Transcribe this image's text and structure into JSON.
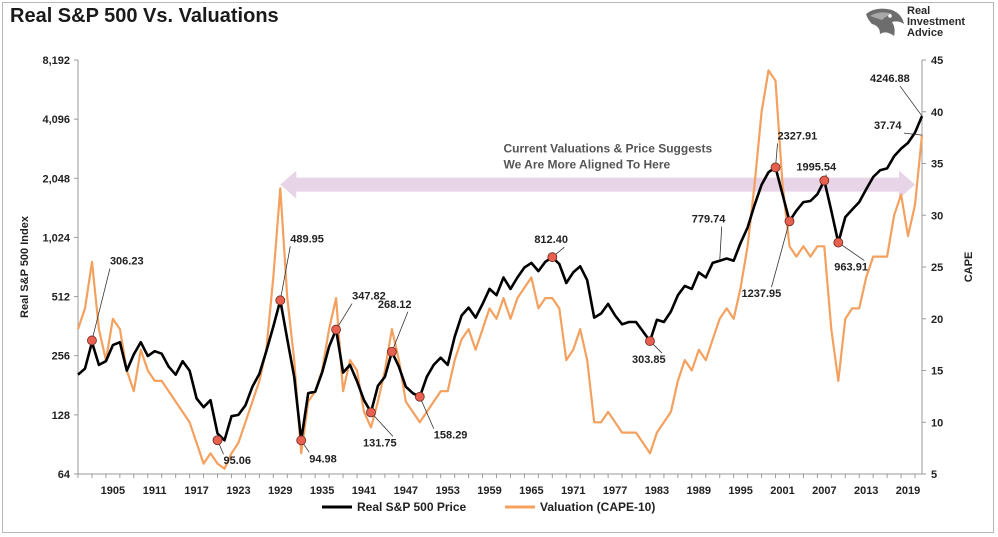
{
  "title": "Real S&P 500 Vs. Valuations",
  "logo": {
    "lines": [
      "Real",
      "Investment",
      "Advice"
    ],
    "icon": "eagle-head-icon"
  },
  "chart_data": {
    "type": "line",
    "title": "Real S&P 500 Vs. Valuations",
    "xlabel": "",
    "x_ticks": [
      "1905",
      "1911",
      "1917",
      "1923",
      "1929",
      "1935",
      "1941",
      "1947",
      "1953",
      "1959",
      "1965",
      "1971",
      "1977",
      "1983",
      "1989",
      "1995",
      "2001",
      "2007",
      "2013",
      "2019"
    ],
    "xlim": [
      1900,
      2021
    ],
    "left_axis": {
      "label": "Real S&P 500 Index",
      "scale": "log2",
      "ticks": [
        "64",
        "128",
        "256",
        "512",
        "1,024",
        "2,048",
        "4,096",
        "8,192"
      ],
      "ylim": [
        64,
        8192
      ]
    },
    "right_axis": {
      "label": "CAPE",
      "ticks": [
        "5",
        "10",
        "15",
        "20",
        "25",
        "30",
        "35",
        "40",
        "45"
      ],
      "ylim": [
        5,
        45
      ]
    },
    "colors": {
      "price": "#000000",
      "cape": "#f4a05f",
      "arrow": "#e3cde3",
      "marker": "#e8604f"
    },
    "series": [
      {
        "name": "Real S&P 500 Price",
        "axis": "left",
        "points": [
          [
            1900,
            205
          ],
          [
            1901,
            220
          ],
          [
            1902,
            300
          ],
          [
            1903,
            230
          ],
          [
            1904,
            240
          ],
          [
            1905,
            290
          ],
          [
            1906,
            300
          ],
          [
            1907,
            215
          ],
          [
            1908,
            260
          ],
          [
            1909,
            300
          ],
          [
            1910,
            255
          ],
          [
            1911,
            270
          ],
          [
            1912,
            262
          ],
          [
            1913,
            225
          ],
          [
            1914,
            205
          ],
          [
            1915,
            240
          ],
          [
            1916,
            215
          ],
          [
            1917,
            155
          ],
          [
            1918,
            140
          ],
          [
            1919,
            152
          ],
          [
            1920,
            103
          ],
          [
            1921,
            95
          ],
          [
            1922,
            126
          ],
          [
            1923,
            128
          ],
          [
            1924,
            143
          ],
          [
            1925,
            178
          ],
          [
            1926,
            207
          ],
          [
            1927,
            270
          ],
          [
            1928,
            360
          ],
          [
            1929,
            490
          ],
          [
            1930,
            310
          ],
          [
            1931,
            200
          ],
          [
            1932,
            95
          ],
          [
            1933,
            165
          ],
          [
            1934,
            168
          ],
          [
            1935,
            210
          ],
          [
            1936,
            285
          ],
          [
            1937,
            348
          ],
          [
            1938,
            210
          ],
          [
            1939,
            230
          ],
          [
            1940,
            190
          ],
          [
            1941,
            152
          ],
          [
            1942,
            132
          ],
          [
            1943,
            180
          ],
          [
            1944,
            200
          ],
          [
            1945,
            268
          ],
          [
            1946,
            225
          ],
          [
            1947,
            178
          ],
          [
            1948,
            165
          ],
          [
            1949,
            158
          ],
          [
            1950,
            200
          ],
          [
            1951,
            230
          ],
          [
            1952,
            250
          ],
          [
            1953,
            230
          ],
          [
            1954,
            320
          ],
          [
            1955,
            410
          ],
          [
            1956,
            450
          ],
          [
            1957,
            400
          ],
          [
            1958,
            470
          ],
          [
            1959,
            560
          ],
          [
            1960,
            520
          ],
          [
            1961,
            640
          ],
          [
            1962,
            560
          ],
          [
            1963,
            640
          ],
          [
            1964,
            720
          ],
          [
            1965,
            760
          ],
          [
            1966,
            690
          ],
          [
            1967,
            770
          ],
          [
            1968,
            812
          ],
          [
            1969,
            750
          ],
          [
            1970,
            600
          ],
          [
            1971,
            680
          ],
          [
            1972,
            730
          ],
          [
            1973,
            620
          ],
          [
            1974,
            400
          ],
          [
            1975,
            420
          ],
          [
            1976,
            470
          ],
          [
            1977,
            410
          ],
          [
            1978,
            370
          ],
          [
            1979,
            380
          ],
          [
            1980,
            380
          ],
          [
            1981,
            340
          ],
          [
            1982,
            304
          ],
          [
            1983,
            390
          ],
          [
            1984,
            380
          ],
          [
            1985,
            430
          ],
          [
            1986,
            520
          ],
          [
            1987,
            580
          ],
          [
            1988,
            560
          ],
          [
            1989,
            680
          ],
          [
            1990,
            640
          ],
          [
            1991,
            760
          ],
          [
            1992,
            780
          ],
          [
            1993,
            800
          ],
          [
            1994,
            780
          ],
          [
            1995,
            960
          ],
          [
            1996,
            1150
          ],
          [
            1997,
            1500
          ],
          [
            1998,
            1900
          ],
          [
            1999,
            2200
          ],
          [
            2000,
            2328
          ],
          [
            2001,
            1700
          ],
          [
            2002,
            1238
          ],
          [
            2003,
            1400
          ],
          [
            2004,
            1550
          ],
          [
            2005,
            1570
          ],
          [
            2006,
            1700
          ],
          [
            2007,
            1996
          ],
          [
            2008,
            1400
          ],
          [
            2009,
            964
          ],
          [
            2010,
            1300
          ],
          [
            2011,
            1420
          ],
          [
            2012,
            1550
          ],
          [
            2013,
            1800
          ],
          [
            2014,
            2080
          ],
          [
            2015,
            2250
          ],
          [
            2016,
            2300
          ],
          [
            2017,
            2650
          ],
          [
            2018,
            2900
          ],
          [
            2019,
            3100
          ],
          [
            2020,
            3500
          ],
          [
            2021,
            4247
          ]
        ]
      },
      {
        "name": "Valuation (CAPE-10)",
        "axis": "right",
        "points": [
          [
            1900,
            19
          ],
          [
            1901,
            21
          ],
          [
            1902,
            25.5
          ],
          [
            1903,
            19
          ],
          [
            1904,
            16
          ],
          [
            1905,
            20
          ],
          [
            1906,
            19
          ],
          [
            1907,
            15
          ],
          [
            1908,
            13
          ],
          [
            1909,
            17
          ],
          [
            1910,
            15
          ],
          [
            1911,
            14
          ],
          [
            1912,
            14
          ],
          [
            1913,
            13
          ],
          [
            1914,
            12
          ],
          [
            1915,
            11
          ],
          [
            1916,
            10
          ],
          [
            1917,
            8
          ],
          [
            1918,
            6
          ],
          [
            1919,
            7
          ],
          [
            1920,
            6
          ],
          [
            1921,
            5.5
          ],
          [
            1922,
            7
          ],
          [
            1923,
            8
          ],
          [
            1924,
            10
          ],
          [
            1925,
            12
          ],
          [
            1926,
            14
          ],
          [
            1927,
            17
          ],
          [
            1928,
            24
          ],
          [
            1929,
            32.6
          ],
          [
            1930,
            22
          ],
          [
            1931,
            16
          ],
          [
            1932,
            7
          ],
          [
            1933,
            12
          ],
          [
            1934,
            13
          ],
          [
            1935,
            15
          ],
          [
            1936,
            19
          ],
          [
            1937,
            22
          ],
          [
            1938,
            13
          ],
          [
            1939,
            16
          ],
          [
            1940,
            15
          ],
          [
            1941,
            11
          ],
          [
            1942,
            9.5
          ],
          [
            1943,
            12
          ],
          [
            1944,
            15
          ],
          [
            1945,
            19
          ],
          [
            1946,
            16
          ],
          [
            1947,
            12
          ],
          [
            1948,
            11
          ],
          [
            1949,
            10
          ],
          [
            1950,
            11
          ],
          [
            1951,
            12
          ],
          [
            1952,
            13
          ],
          [
            1953,
            13
          ],
          [
            1954,
            16
          ],
          [
            1955,
            18
          ],
          [
            1956,
            19
          ],
          [
            1957,
            17
          ],
          [
            1958,
            19
          ],
          [
            1959,
            21
          ],
          [
            1960,
            20
          ],
          [
            1961,
            22
          ],
          [
            1962,
            20
          ],
          [
            1963,
            22
          ],
          [
            1964,
            23
          ],
          [
            1965,
            24
          ],
          [
            1966,
            21
          ],
          [
            1967,
            22
          ],
          [
            1968,
            22
          ],
          [
            1969,
            21
          ],
          [
            1970,
            16
          ],
          [
            1971,
            17
          ],
          [
            1972,
            19
          ],
          [
            1973,
            16
          ],
          [
            1974,
            10
          ],
          [
            1975,
            10
          ],
          [
            1976,
            11
          ],
          [
            1977,
            10
          ],
          [
            1978,
            9
          ],
          [
            1979,
            9
          ],
          [
            1980,
            9
          ],
          [
            1981,
            8
          ],
          [
            1982,
            7
          ],
          [
            1983,
            9
          ],
          [
            1984,
            10
          ],
          [
            1985,
            11
          ],
          [
            1986,
            14
          ],
          [
            1987,
            16
          ],
          [
            1988,
            15
          ],
          [
            1989,
            17
          ],
          [
            1990,
            16
          ],
          [
            1991,
            18
          ],
          [
            1992,
            20
          ],
          [
            1993,
            21
          ],
          [
            1994,
            20
          ],
          [
            1995,
            23
          ],
          [
            1996,
            27
          ],
          [
            1997,
            33
          ],
          [
            1998,
            40
          ],
          [
            1999,
            44
          ],
          [
            2000,
            43
          ],
          [
            2001,
            33
          ],
          [
            2002,
            27
          ],
          [
            2003,
            26
          ],
          [
            2004,
            27
          ],
          [
            2005,
            26
          ],
          [
            2006,
            27
          ],
          [
            2007,
            27
          ],
          [
            2008,
            19
          ],
          [
            2009,
            14
          ],
          [
            2010,
            20
          ],
          [
            2011,
            21
          ],
          [
            2012,
            21
          ],
          [
            2013,
            24
          ],
          [
            2014,
            26
          ],
          [
            2015,
            26
          ],
          [
            2016,
            26
          ],
          [
            2017,
            30
          ],
          [
            2018,
            32
          ],
          [
            2019,
            28
          ],
          [
            2020,
            31
          ],
          [
            2021,
            37.74
          ]
        ]
      }
    ],
    "annotations": [
      {
        "label": "306.23",
        "x": 1902,
        "y": 306.23
      },
      {
        "label": "489.95",
        "x": 1929,
        "y": 489.95
      },
      {
        "label": "95.06",
        "x": 1920,
        "y": 95.06
      },
      {
        "label": "94.98",
        "x": 1932,
        "y": 94.98
      },
      {
        "label": "347.82",
        "x": 1937,
        "y": 347.82
      },
      {
        "label": "268.12",
        "x": 1945,
        "y": 268.12
      },
      {
        "label": "131.75",
        "x": 1942,
        "y": 131.75
      },
      {
        "label": "158.29",
        "x": 1949,
        "y": 158.29
      },
      {
        "label": "812.40",
        "x": 1968,
        "y": 812.4
      },
      {
        "label": "303.85",
        "x": 1982,
        "y": 303.85
      },
      {
        "label": "779.74",
        "x": 1992,
        "y": 779.74
      },
      {
        "label": "2327.91",
        "x": 2000,
        "y": 2327.91
      },
      {
        "label": "1237.95",
        "x": 2002,
        "y": 1237.95
      },
      {
        "label": "1995.54",
        "x": 2007,
        "y": 1995.54
      },
      {
        "label": "963.91",
        "x": 2009,
        "y": 963.91
      },
      {
        "label": "4246.88",
        "x": 2021,
        "y": 4246.88
      },
      {
        "label": "37.74",
        "x": 2021,
        "y": 37.74
      }
    ],
    "callout": {
      "lines": [
        "Current Valuations & Price Suggests",
        "We Are More Aligned To Here"
      ],
      "level": 1900
    },
    "grid": false,
    "legend_position": "bottom-center"
  }
}
